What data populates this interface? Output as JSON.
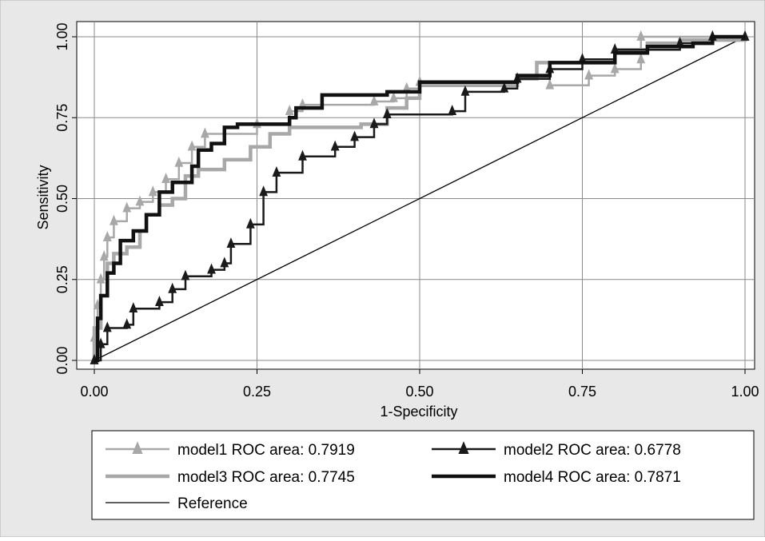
{
  "chart_data": {
    "type": "line",
    "xlabel": "1-Specificity",
    "ylabel": "Sensitivity",
    "xlim": [
      0,
      1
    ],
    "ylim": [
      0,
      1
    ],
    "xticks": [
      "0.00",
      "0.25",
      "0.50",
      "0.75",
      "1.00"
    ],
    "yticks": [
      "0.00",
      "0.25",
      "0.50",
      "0.75",
      "1.00"
    ],
    "grid": true,
    "legend_position": "bottom",
    "background_color": "#e8e8e8",
    "plot_background_color": "#ffffff",
    "grid_color": "#8a8a8a",
    "series": [
      {
        "name": "model1 ROC area: 0.7919",
        "color": "#a8a8a8",
        "marker": "triangle",
        "style": "thin",
        "points": [
          [
            0,
            0
          ],
          [
            0,
            0.07
          ],
          [
            0.005,
            0.17
          ],
          [
            0.01,
            0.25
          ],
          [
            0.015,
            0.32
          ],
          [
            0.02,
            0.38
          ],
          [
            0.03,
            0.43
          ],
          [
            0.05,
            0.47
          ],
          [
            0.07,
            0.49
          ],
          [
            0.09,
            0.52
          ],
          [
            0.11,
            0.56
          ],
          [
            0.13,
            0.61
          ],
          [
            0.15,
            0.66
          ],
          [
            0.17,
            0.7
          ],
          [
            0.25,
            0.73
          ],
          [
            0.3,
            0.77
          ],
          [
            0.32,
            0.79
          ],
          [
            0.43,
            0.8
          ],
          [
            0.46,
            0.81
          ],
          [
            0.48,
            0.84
          ],
          [
            0.5,
            0.86
          ],
          [
            0.65,
            0.87
          ],
          [
            0.7,
            0.85
          ],
          [
            0.76,
            0.88
          ],
          [
            0.8,
            0.9
          ],
          [
            0.84,
            0.93
          ],
          [
            0.84,
            1.0
          ],
          [
            1,
            1
          ]
        ]
      },
      {
        "name": "model2 ROC area: 0.6778",
        "color": "#1a1a1a",
        "marker": "triangle",
        "style": "thin",
        "points": [
          [
            0,
            0
          ],
          [
            0.01,
            0.05
          ],
          [
            0.02,
            0.1
          ],
          [
            0.05,
            0.11
          ],
          [
            0.06,
            0.16
          ],
          [
            0.1,
            0.18
          ],
          [
            0.12,
            0.22
          ],
          [
            0.14,
            0.26
          ],
          [
            0.18,
            0.28
          ],
          [
            0.2,
            0.3
          ],
          [
            0.21,
            0.36
          ],
          [
            0.24,
            0.42
          ],
          [
            0.26,
            0.52
          ],
          [
            0.28,
            0.58
          ],
          [
            0.32,
            0.63
          ],
          [
            0.37,
            0.66
          ],
          [
            0.4,
            0.69
          ],
          [
            0.43,
            0.73
          ],
          [
            0.45,
            0.76
          ],
          [
            0.55,
            0.77
          ],
          [
            0.57,
            0.83
          ],
          [
            0.63,
            0.84
          ],
          [
            0.65,
            0.87
          ],
          [
            0.7,
            0.9
          ],
          [
            0.75,
            0.93
          ],
          [
            0.8,
            0.96
          ],
          [
            0.9,
            0.98
          ],
          [
            0.95,
            1.0
          ],
          [
            1,
            1
          ]
        ]
      },
      {
        "name": "model3 ROC area: 0.7745",
        "color": "#a8a8a8",
        "marker": "none",
        "style": "thick",
        "points": [
          [
            0,
            0
          ],
          [
            0,
            0.1
          ],
          [
            0.01,
            0.2
          ],
          [
            0.02,
            0.3
          ],
          [
            0.03,
            0.33
          ],
          [
            0.05,
            0.35
          ],
          [
            0.07,
            0.4
          ],
          [
            0.08,
            0.45
          ],
          [
            0.1,
            0.48
          ],
          [
            0.12,
            0.5
          ],
          [
            0.14,
            0.57
          ],
          [
            0.16,
            0.59
          ],
          [
            0.2,
            0.62
          ],
          [
            0.24,
            0.66
          ],
          [
            0.27,
            0.7
          ],
          [
            0.3,
            0.72
          ],
          [
            0.41,
            0.73
          ],
          [
            0.45,
            0.78
          ],
          [
            0.48,
            0.81
          ],
          [
            0.5,
            0.85
          ],
          [
            0.65,
            0.87
          ],
          [
            0.68,
            0.92
          ],
          [
            0.8,
            0.96
          ],
          [
            0.85,
            0.98
          ],
          [
            0.9,
            0.99
          ],
          [
            1,
            1
          ]
        ]
      },
      {
        "name": "model4 ROC area: 0.7871",
        "color": "#111111",
        "marker": "none",
        "style": "thick",
        "points": [
          [
            0,
            0
          ],
          [
            0.005,
            0.13
          ],
          [
            0.01,
            0.2
          ],
          [
            0.02,
            0.27
          ],
          [
            0.03,
            0.3
          ],
          [
            0.04,
            0.37
          ],
          [
            0.06,
            0.4
          ],
          [
            0.08,
            0.45
          ],
          [
            0.1,
            0.52
          ],
          [
            0.12,
            0.55
          ],
          [
            0.15,
            0.6
          ],
          [
            0.16,
            0.65
          ],
          [
            0.18,
            0.67
          ],
          [
            0.2,
            0.72
          ],
          [
            0.22,
            0.73
          ],
          [
            0.3,
            0.75
          ],
          [
            0.31,
            0.78
          ],
          [
            0.35,
            0.82
          ],
          [
            0.45,
            0.83
          ],
          [
            0.5,
            0.86
          ],
          [
            0.65,
            0.88
          ],
          [
            0.7,
            0.92
          ],
          [
            0.8,
            0.95
          ],
          [
            0.85,
            0.97
          ],
          [
            0.92,
            0.98
          ],
          [
            0.95,
            1.0
          ],
          [
            1,
            1
          ]
        ]
      },
      {
        "name": "Reference",
        "color": "#000000",
        "marker": "none",
        "style": "reference",
        "points": [
          [
            0,
            0
          ],
          [
            1,
            1
          ]
        ]
      }
    ]
  }
}
